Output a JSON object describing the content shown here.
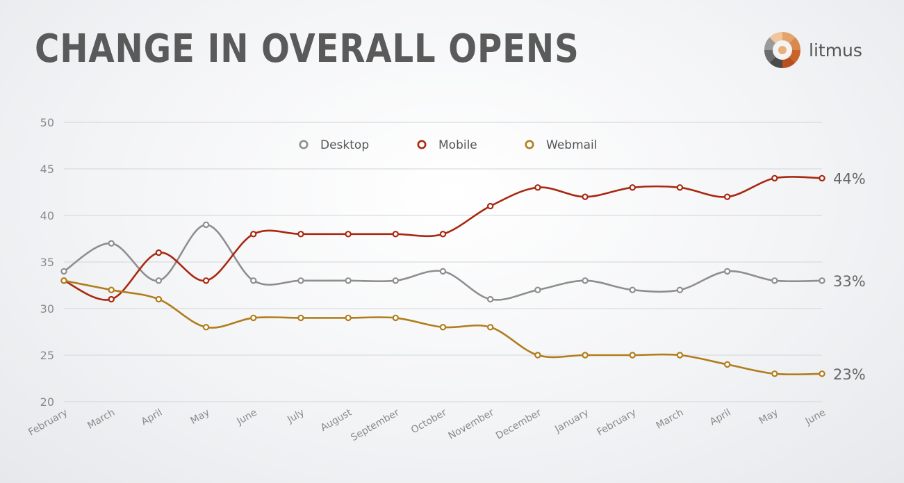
{
  "header": {
    "title": "CHANGE IN OVERALL OPENS",
    "brand_name": "litmus",
    "brand_icon": "litmus-logo-icon"
  },
  "chart_data": {
    "type": "line",
    "title": "CHANGE IN OVERALL OPENS",
    "xlabel": "",
    "ylabel": "",
    "categories": [
      "February",
      "March",
      "April",
      "May",
      "June",
      "July",
      "August",
      "September",
      "October",
      "November",
      "December",
      "January",
      "February",
      "March",
      "April",
      "May",
      "June"
    ],
    "ylim": [
      20,
      50
    ],
    "yticks": [
      20,
      25,
      30,
      35,
      40,
      45,
      50
    ],
    "grid": true,
    "smooth": true,
    "legend_position": "top-center",
    "series": [
      {
        "name": "Desktop",
        "color": "#8e8e8e",
        "values": [
          34,
          37,
          33,
          39,
          33,
          33,
          33,
          33,
          34,
          31,
          32,
          33,
          32,
          32,
          34,
          33,
          33
        ],
        "end_label": "33%"
      },
      {
        "name": "Mobile",
        "color": "#a82810",
        "values": [
          33,
          31,
          36,
          33,
          38,
          38,
          38,
          38,
          38,
          41,
          43,
          42,
          43,
          43,
          42,
          44,
          44
        ],
        "end_label": "44%"
      },
      {
        "name": "Webmail",
        "color": "#b07d1c",
        "values": [
          33,
          32,
          31,
          28,
          29,
          29,
          29,
          29,
          28,
          28,
          25,
          25,
          25,
          25,
          24,
          23,
          23
        ],
        "end_label": "23%"
      }
    ]
  }
}
